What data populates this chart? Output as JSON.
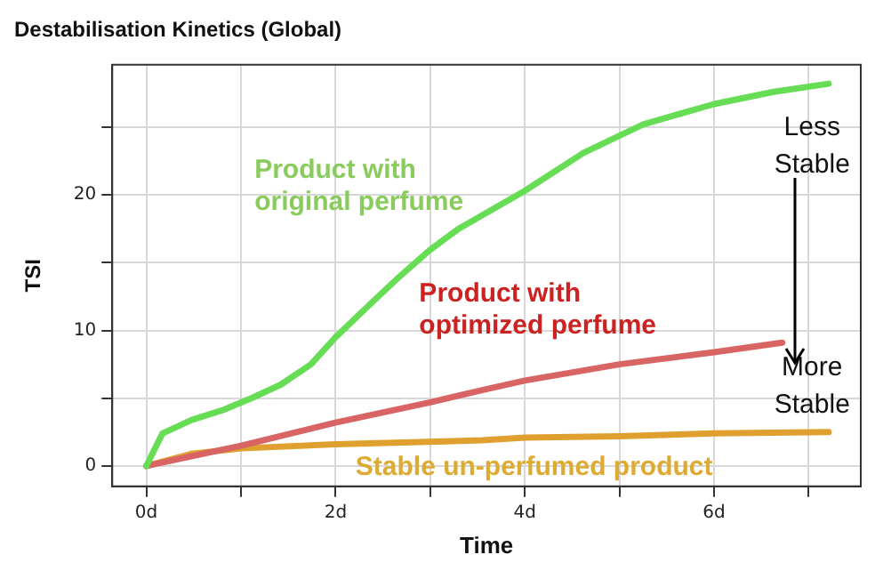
{
  "chart_data": {
    "type": "line",
    "title": "Destabilisation Kinetics (Global)",
    "xlabel": "Time",
    "ylabel": "TSI",
    "xlim": [
      -0.36,
      7.55
    ],
    "ylim": [
      -1.5,
      29.6
    ],
    "xticks": [
      {
        "value": 0,
        "label": "0d"
      },
      {
        "value": 1,
        "label": null
      },
      {
        "value": 2,
        "label": "2d"
      },
      {
        "value": 3,
        "label": null
      },
      {
        "value": 4,
        "label": "4d"
      },
      {
        "value": 5,
        "label": null
      },
      {
        "value": 6,
        "label": "6d"
      },
      {
        "value": 7,
        "label": null
      }
    ],
    "yticks": [
      0,
      {
        "value": 5,
        "label": null
      },
      10,
      {
        "value": 15,
        "label": null
      },
      20,
      {
        "value": 25,
        "label": null
      }
    ],
    "grid": true,
    "legend": false,
    "marker": "none",
    "line_style": "solid",
    "series": [
      {
        "name": "Product with original perfume",
        "color": "#66dd55",
        "x": [
          0,
          0.17,
          0.48,
          0.8,
          1.11,
          1.42,
          1.74,
          2,
          2.36,
          2.68,
          2.99,
          3.3,
          3.55,
          4,
          4.62,
          5.25,
          6,
          6.63,
          7.21
        ],
        "values": [
          0,
          2.4,
          3.4,
          4.1,
          5.0,
          6.0,
          7.5,
          9.5,
          11.9,
          14.0,
          15.9,
          17.5,
          18.5,
          20.3,
          23.1,
          25.2,
          26.7,
          27.6,
          28.2
        ]
      },
      {
        "name": "Product with optimized perfume",
        "color": "#d96464",
        "x": [
          0,
          1,
          2,
          3,
          3.55,
          4,
          5,
          6,
          6.72
        ],
        "values": [
          0,
          1.5,
          3.2,
          4.7,
          5.6,
          6.3,
          7.5,
          8.4,
          9.1
        ]
      },
      {
        "name": "Stable un-perfumed product",
        "color": "#e0a030",
        "x": [
          0,
          0.48,
          1,
          2,
          3.55,
          4,
          5,
          6,
          7.21
        ],
        "values": [
          0,
          0.9,
          1.3,
          1.6,
          1.9,
          2.1,
          2.2,
          2.4,
          2.5
        ]
      }
    ],
    "annotations": [
      "Less Stable",
      "More Stable"
    ]
  }
}
